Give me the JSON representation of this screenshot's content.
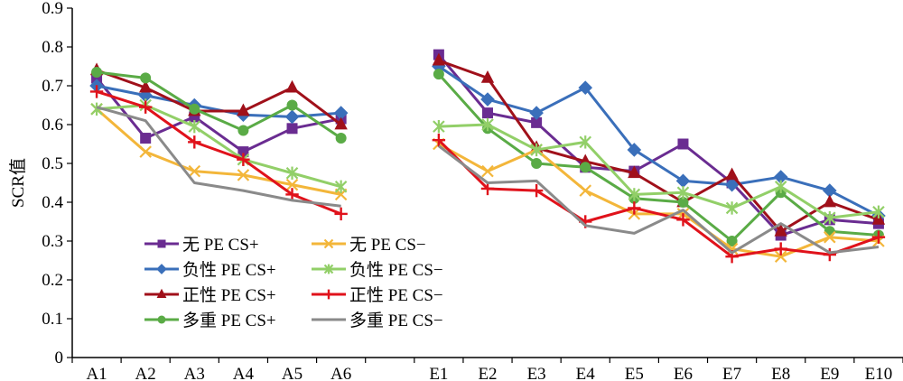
{
  "chart_data": {
    "type": "line",
    "title": "",
    "xlabel": "",
    "ylabel": "SCR值",
    "ylim": [
      0,
      0.9
    ],
    "yticks": [
      "0",
      "0.1",
      "0.2",
      "0.3",
      "0.4",
      "0.5",
      "0.6",
      "0.7",
      "0.8",
      "0.9"
    ],
    "grid": false,
    "legend_position": "lower-left",
    "categories": [
      "A1",
      "A2",
      "A3",
      "A4",
      "A5",
      "A6",
      "",
      "E1",
      "E2",
      "E3",
      "E4",
      "E5",
      "E6",
      "E7",
      "E8",
      "E9",
      "E10"
    ],
    "series": [
      {
        "name": "无 PE CS+",
        "color": "#6a2c91",
        "marker": "square",
        "values": [
          0.72,
          0.565,
          0.62,
          0.53,
          0.59,
          0.615,
          null,
          0.78,
          0.63,
          0.605,
          0.49,
          0.48,
          0.55,
          0.45,
          0.315,
          0.355,
          0.345
        ]
      },
      {
        "name": "负性 PE CS+",
        "color": "#3a6fba",
        "marker": "diamond",
        "values": [
          0.7,
          0.675,
          0.65,
          0.625,
          0.62,
          0.63,
          null,
          0.75,
          0.665,
          0.63,
          0.695,
          0.535,
          0.455,
          0.445,
          0.465,
          0.43,
          0.365
        ]
      },
      {
        "name": "正性 PE CS+",
        "color": "#a0101a",
        "marker": "triangle",
        "values": [
          0.74,
          0.695,
          0.635,
          0.635,
          0.695,
          0.6,
          null,
          0.765,
          0.72,
          0.54,
          0.505,
          0.475,
          0.4,
          0.47,
          0.325,
          0.4,
          0.355
        ]
      },
      {
        "name": "多重 PE CS+",
        "color": "#5aab46",
        "marker": "circle",
        "values": [
          0.735,
          0.72,
          0.64,
          0.585,
          0.65,
          0.565,
          null,
          0.73,
          0.59,
          0.5,
          0.49,
          0.41,
          0.4,
          0.3,
          0.425,
          0.325,
          0.315
        ]
      },
      {
        "name": "无 PE CS−",
        "color": "#f3b63a",
        "marker": "x",
        "values": [
          0.64,
          0.53,
          0.48,
          0.47,
          0.445,
          0.42,
          null,
          0.55,
          0.48,
          0.535,
          0.43,
          0.37,
          0.37,
          0.28,
          0.26,
          0.31,
          0.3
        ]
      },
      {
        "name": "负性 PE CS−",
        "color": "#92cf68",
        "marker": "asterisk",
        "values": [
          0.64,
          0.65,
          0.595,
          0.51,
          0.475,
          0.44,
          null,
          0.595,
          0.6,
          0.535,
          0.555,
          0.42,
          0.425,
          0.385,
          0.44,
          0.36,
          0.375
        ]
      },
      {
        "name": "正性 PE CS−",
        "color": "#e0121b",
        "marker": "plus",
        "values": [
          0.685,
          0.645,
          0.555,
          0.51,
          0.42,
          0.37,
          null,
          0.56,
          0.435,
          0.43,
          0.35,
          0.385,
          0.355,
          0.26,
          0.28,
          0.265,
          0.31
        ]
      },
      {
        "name": "多重 PE CS−",
        "color": "#8a8a8a",
        "marker": "none",
        "values": [
          0.645,
          0.61,
          0.45,
          0.43,
          0.405,
          0.39,
          null,
          0.545,
          0.45,
          0.455,
          0.34,
          0.32,
          0.38,
          0.27,
          0.345,
          0.27,
          0.285
        ]
      }
    ]
  }
}
